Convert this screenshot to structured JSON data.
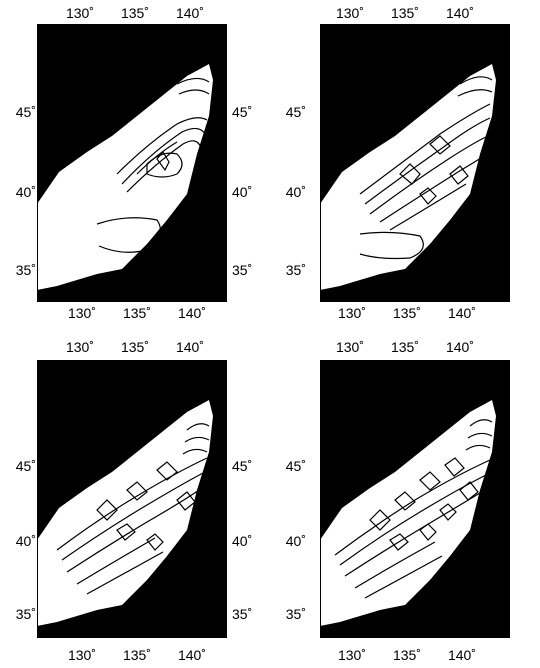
{
  "axes": {
    "lon_labels": [
      "130˚",
      "135˚",
      "140˚"
    ],
    "lat_labels": [
      "45˚",
      "40˚",
      "35˚"
    ]
  },
  "panels": [
    {
      "id": "panel-1"
    },
    {
      "id": "panel-2"
    },
    {
      "id": "panel-3"
    },
    {
      "id": "panel-4"
    }
  ],
  "colors": {
    "land": "#000000",
    "sea": "#ffffff",
    "contour": "#000000"
  }
}
